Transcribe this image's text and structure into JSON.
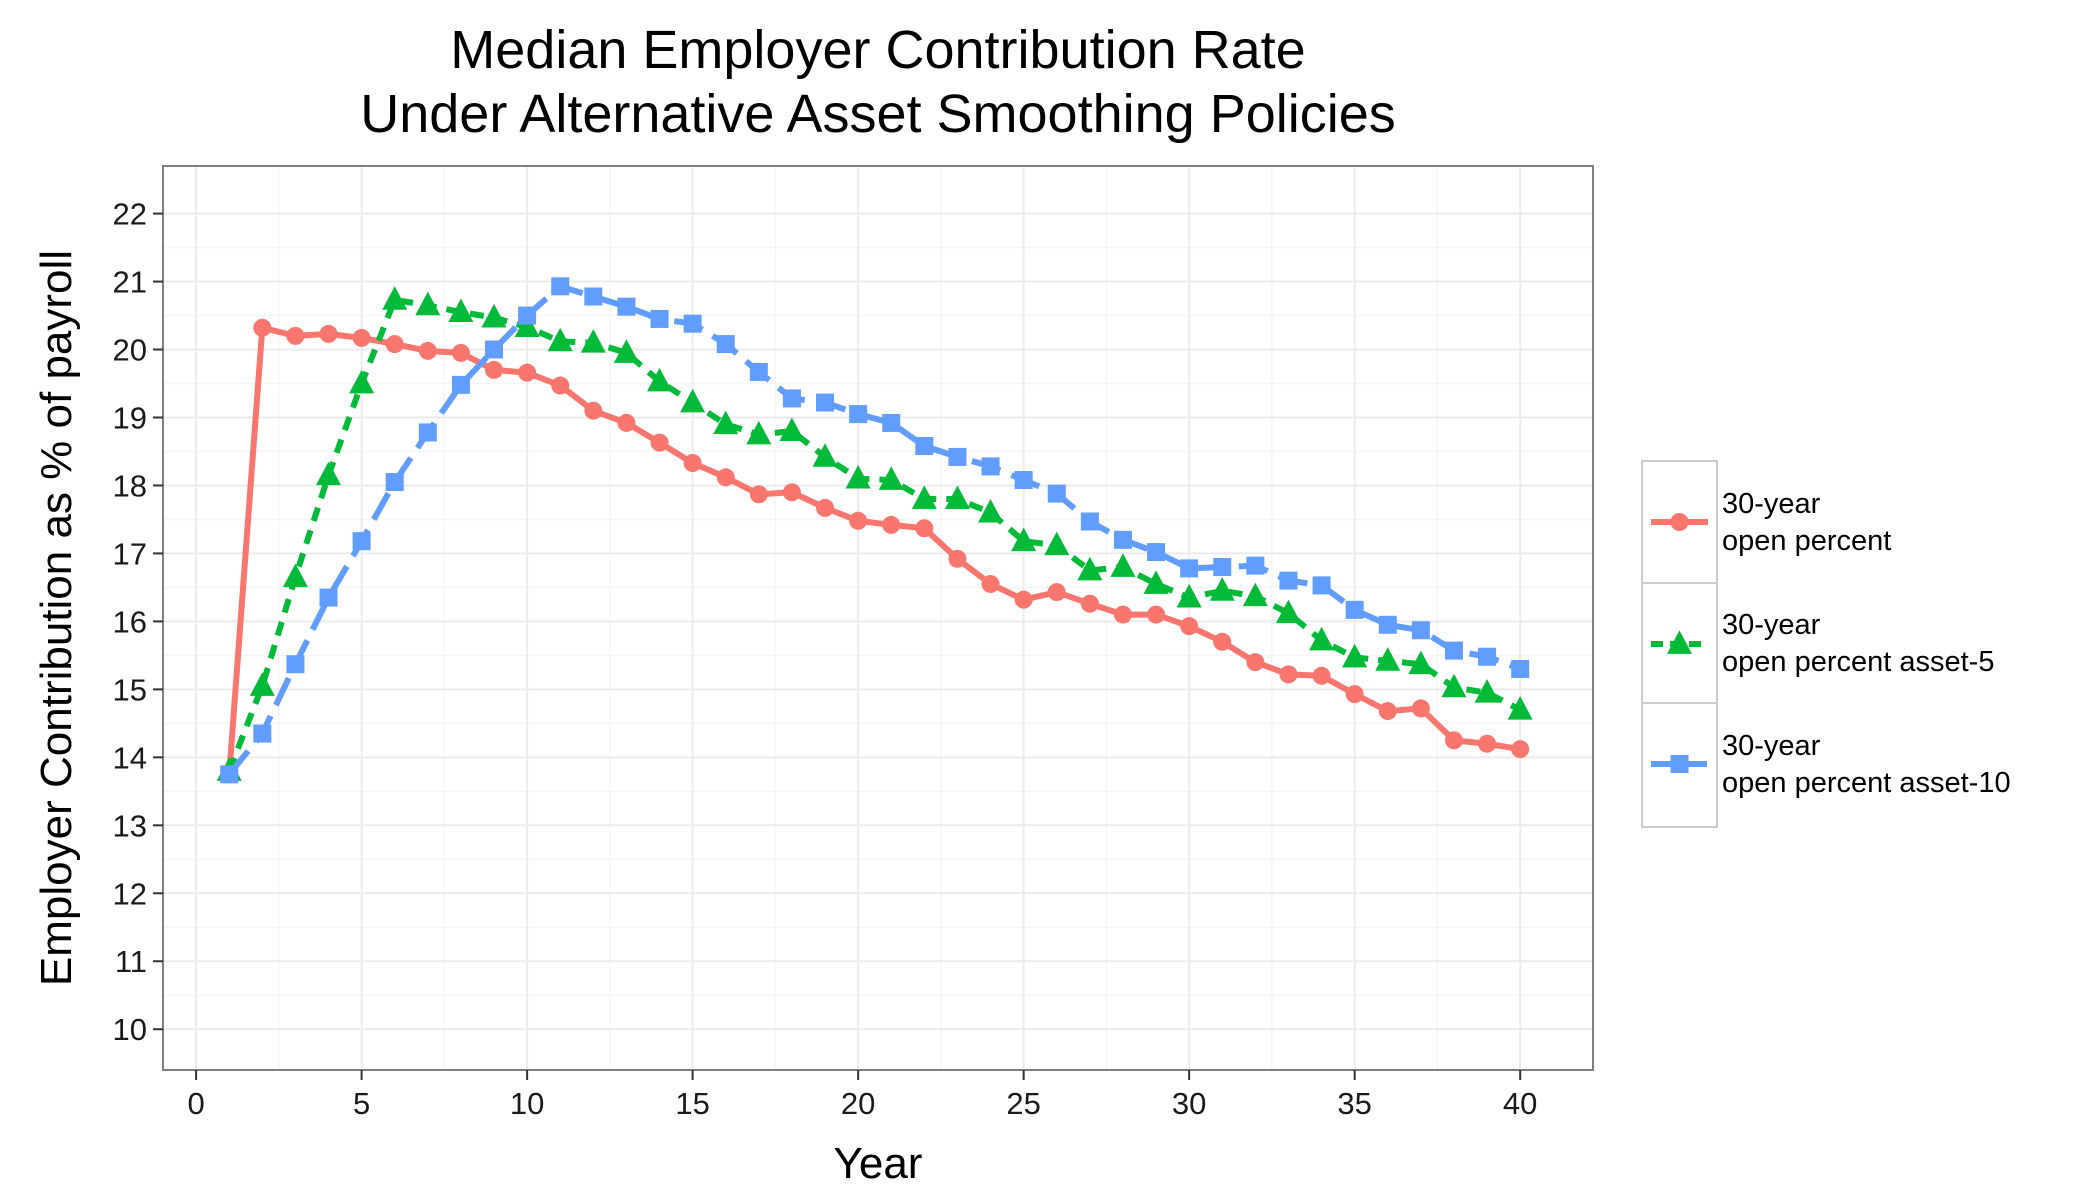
{
  "chart_data": {
    "type": "line",
    "title_lines": [
      "Median Employer Contribution Rate",
      "Under Alternative Asset Smoothing Policies"
    ],
    "xlabel": "Year",
    "ylabel": "Employer Contribution as % of payroll",
    "xlim": [
      -1,
      42.2
    ],
    "ylim": [
      9.4,
      22.7
    ],
    "x_ticks": [
      0,
      5,
      10,
      15,
      20,
      25,
      30,
      35,
      40
    ],
    "y_ticks": [
      10,
      11,
      12,
      13,
      14,
      15,
      16,
      17,
      18,
      19,
      20,
      21,
      22
    ],
    "grid": true,
    "legend_position": "right",
    "x": [
      1,
      2,
      3,
      4,
      5,
      6,
      7,
      8,
      9,
      10,
      11,
      12,
      13,
      14,
      15,
      16,
      17,
      18,
      19,
      20,
      21,
      22,
      23,
      24,
      25,
      26,
      27,
      28,
      29,
      30,
      31,
      32,
      33,
      34,
      35,
      36,
      37,
      38,
      39,
      40
    ],
    "series": [
      {
        "name": "30-year open percent",
        "label_lines": [
          "30-year",
          "open percent"
        ],
        "color": "#F8766D",
        "marker": "circle",
        "dash": "solid",
        "values": [
          13.75,
          20.32,
          20.2,
          20.23,
          20.17,
          20.08,
          19.98,
          19.95,
          19.7,
          19.66,
          19.47,
          19.1,
          18.92,
          18.63,
          18.33,
          18.12,
          17.87,
          17.9,
          17.67,
          17.48,
          17.42,
          17.37,
          16.92,
          16.55,
          16.32,
          16.43,
          16.26,
          16.1,
          16.1,
          15.93,
          15.7,
          15.4,
          15.22,
          15.2,
          14.93,
          14.68,
          14.72,
          14.25,
          14.2,
          14.12
        ]
      },
      {
        "name": "30-year open percent asset-5",
        "label_lines": [
          "30-year",
          "open percent asset-5"
        ],
        "color": "#00BA38",
        "marker": "triangle",
        "dash": "dashed",
        "values": [
          13.8,
          15.05,
          16.65,
          18.15,
          19.5,
          20.73,
          20.65,
          20.55,
          20.47,
          20.33,
          20.12,
          20.1,
          19.95,
          19.53,
          19.22,
          18.9,
          18.75,
          18.8,
          18.42,
          18.1,
          18.08,
          17.8,
          17.8,
          17.6,
          17.18,
          17.12,
          16.75,
          16.8,
          16.55,
          16.35,
          16.45,
          16.37,
          16.12,
          15.72,
          15.47,
          15.42,
          15.37,
          15.03,
          14.95,
          14.7
        ]
      },
      {
        "name": "30-year open percent asset-10",
        "label_lines": [
          "30-year",
          "open percent asset-10"
        ],
        "color": "#619CFF",
        "marker": "square",
        "dash": "longdash",
        "values": [
          13.75,
          14.35,
          15.37,
          16.35,
          17.18,
          18.05,
          18.78,
          19.48,
          20.0,
          20.5,
          20.93,
          20.78,
          20.63,
          20.45,
          20.38,
          20.08,
          19.67,
          19.28,
          19.22,
          19.05,
          18.92,
          18.58,
          18.42,
          18.28,
          18.08,
          17.88,
          17.47,
          17.2,
          17.02,
          16.78,
          16.8,
          16.82,
          16.6,
          16.53,
          16.17,
          15.95,
          15.87,
          15.57,
          15.48,
          15.3
        ]
      }
    ]
  }
}
